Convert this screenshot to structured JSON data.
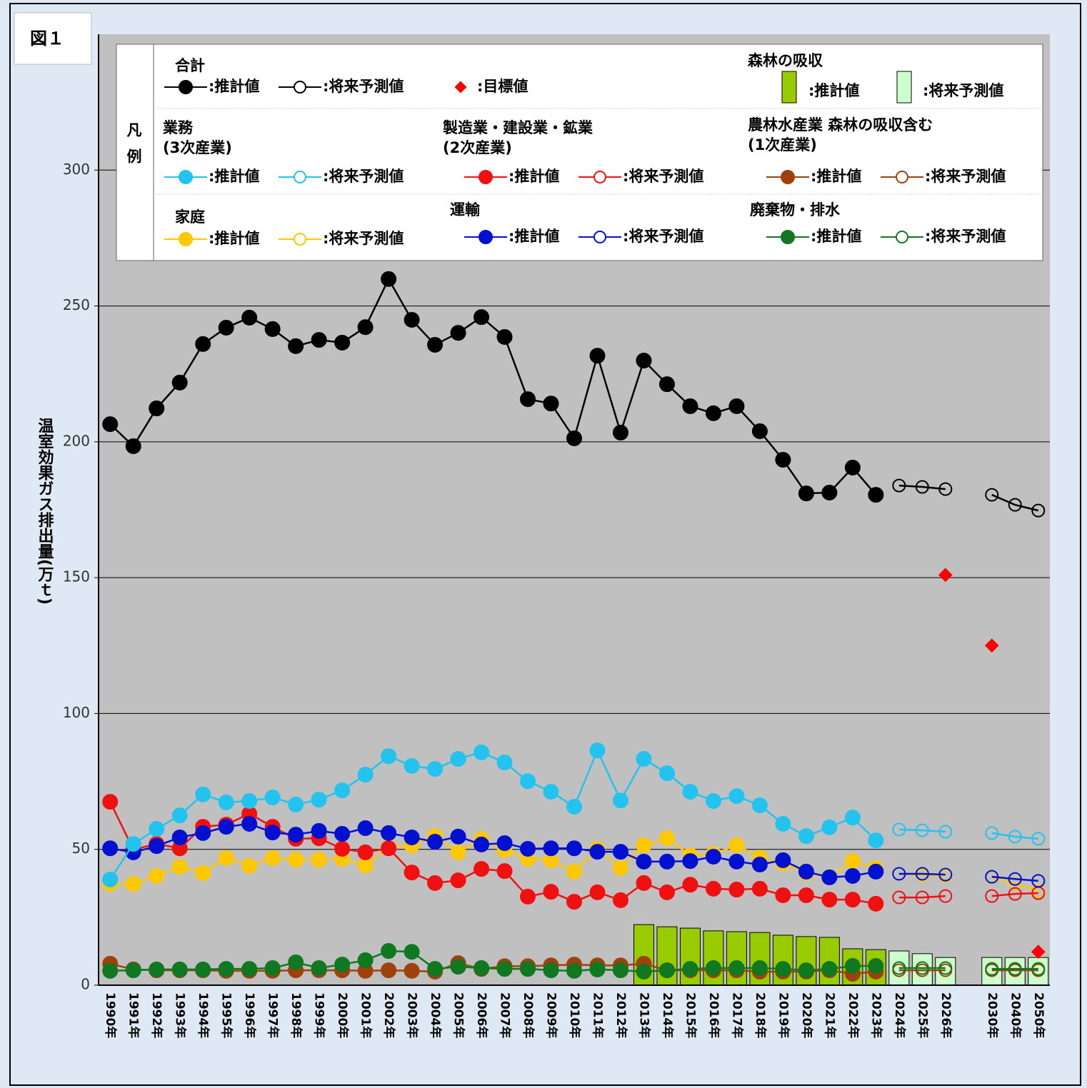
{
  "figure_label": "図１",
  "chart_data": {
    "type": "line",
    "y_label": "温室効果ガス排出量(万ｔ)",
    "legend_title": "凡例",
    "estimate_label": ":推計値",
    "forecast_label": ":将来予測値",
    "categories": [
      "1990年",
      "1991年",
      "1992年",
      "1993年",
      "1994年",
      "1995年",
      "1996年",
      "1997年",
      "1998年",
      "1999年",
      "2000年",
      "2001年",
      "2002年",
      "2003年",
      "2004年",
      "2005年",
      "2006年",
      "2007年",
      "2008年",
      "2009年",
      "2010年",
      "2011年",
      "2012年",
      "2013年",
      "2014年",
      "2015年",
      "2016年",
      "2017年",
      "2018年",
      "2019年",
      "2020年",
      "2021年",
      "2022年",
      "2023年",
      "2024年",
      "2025年",
      "2026年",
      null,
      "2030年",
      "2040年",
      "2050年"
    ],
    "ylim": [
      0,
      350
    ],
    "yticks": [
      0,
      50,
      100,
      150,
      200,
      250,
      300
    ],
    "grid": true,
    "series": [
      {
        "name": "合計",
        "color": "#000000",
        "values": [
          206.5,
          198.4,
          212.3,
          221.8,
          236,
          242,
          245.7,
          241.5,
          235.2,
          237.5,
          236.5,
          242.2,
          259.9,
          244.9,
          235.7,
          240.1,
          245.9,
          238.6,
          215.7,
          214.1,
          201.3,
          231.7,
          203.4,
          229.9,
          221.2,
          213.1,
          210.5,
          213.1,
          203.9,
          193.4,
          181,
          181.3,
          190.5,
          180.5,
          null,
          null,
          null,
          null,
          null,
          null,
          null
        ],
        "forecast": [
          null,
          null,
          null,
          null,
          null,
          null,
          null,
          null,
          null,
          null,
          null,
          null,
          null,
          null,
          null,
          null,
          null,
          null,
          null,
          null,
          null,
          null,
          null,
          null,
          null,
          null,
          null,
          null,
          null,
          null,
          null,
          null,
          null,
          null,
          183.9,
          183.4,
          182.6,
          null,
          180.5,
          176.8,
          174.7
        ]
      },
      {
        "name": "業務",
        "note": "(3次産業)",
        "color": "#22c3ef",
        "values": [
          38.9,
          52,
          57.5,
          62.5,
          70.2,
          67.3,
          67.8,
          69.1,
          66.5,
          68.3,
          71.7,
          77.5,
          84.3,
          80.7,
          79.6,
          83.3,
          85.7,
          82,
          75.1,
          71.2,
          65.7,
          86.4,
          68,
          83.3,
          78,
          71.2,
          67.8,
          69.6,
          66.2,
          59.4,
          54.9,
          58.1,
          61.7,
          53.3,
          null,
          null,
          null,
          null,
          null,
          null,
          null
        ],
        "forecast": [
          null,
          null,
          null,
          null,
          null,
          null,
          null,
          null,
          null,
          null,
          null,
          null,
          null,
          null,
          null,
          null,
          null,
          null,
          null,
          null,
          null,
          null,
          null,
          null,
          null,
          null,
          null,
          null,
          null,
          null,
          null,
          null,
          null,
          null,
          57.3,
          57,
          56.5,
          null,
          56,
          54.7,
          53.9
        ]
      },
      {
        "name": "製造業・建設業・鉱業",
        "note": "(2次産業)",
        "color": "#f01010",
        "values": [
          67.5,
          49.9,
          52,
          50.4,
          58.3,
          59.1,
          63.1,
          58.3,
          53.9,
          54.1,
          50.2,
          48.9,
          50.4,
          41.5,
          37.6,
          38.6,
          42.8,
          42,
          32.6,
          34.4,
          30.7,
          34.2,
          31.3,
          37.6,
          34.2,
          37,
          35.5,
          35.2,
          35.5,
          33.1,
          33.1,
          31.5,
          31.5,
          30,
          null,
          null,
          null,
          null,
          null,
          null,
          null
        ],
        "forecast": [
          null,
          null,
          null,
          null,
          null,
          null,
          null,
          null,
          null,
          null,
          null,
          null,
          null,
          null,
          null,
          null,
          null,
          null,
          null,
          null,
          null,
          null,
          null,
          null,
          null,
          null,
          null,
          null,
          null,
          null,
          null,
          null,
          null,
          null,
          32.3,
          32.3,
          32.8,
          null,
          32.8,
          33.6,
          33.9
        ]
      },
      {
        "name": "農林水産業 森林の吸収含む",
        "note": "(1次産業)",
        "color": "#a0400a",
        "values": [
          7.9,
          5.8,
          5.5,
          5.5,
          5.5,
          5.3,
          5.3,
          5.3,
          5.5,
          5.5,
          5.5,
          5.3,
          5.5,
          5.3,
          5,
          8.1,
          6,
          7,
          7,
          7.3,
          7.6,
          7.3,
          7.3,
          7.9,
          5.5,
          5.5,
          5.5,
          5.5,
          5,
          5,
          5,
          5.5,
          4.2,
          5,
          null,
          null,
          null,
          null,
          null,
          null,
          null
        ],
        "forecast": [
          null,
          null,
          null,
          null,
          null,
          null,
          null,
          null,
          null,
          null,
          null,
          null,
          null,
          null,
          null,
          null,
          null,
          null,
          null,
          null,
          null,
          null,
          null,
          null,
          null,
          null,
          null,
          null,
          null,
          null,
          null,
          null,
          null,
          null,
          5.5,
          5.5,
          5.5,
          null,
          5.5,
          5.5,
          5.5
        ]
      },
      {
        "name": "家庭",
        "color": "#ffc800",
        "values": [
          37.3,
          37.3,
          40.2,
          43.6,
          41.3,
          46.8,
          43.9,
          46.8,
          46.2,
          46.2,
          46.5,
          44.1,
          50.7,
          51.5,
          54.9,
          48.9,
          53.9,
          49.7,
          46.5,
          46,
          41.8,
          50.2,
          43.1,
          51.5,
          54.1,
          47.8,
          48.3,
          51.5,
          47,
          44.9,
          41.3,
          39.7,
          45.7,
          43.1,
          null,
          null,
          null,
          null,
          null,
          null,
          null
        ],
        "forecast": [
          null,
          null,
          null,
          null,
          null,
          null,
          null,
          null,
          null,
          null,
          null,
          null,
          null,
          null,
          null,
          null,
          null,
          null,
          null,
          null,
          null,
          null,
          null,
          null,
          null,
          null,
          null,
          null,
          null,
          null,
          null,
          null,
          null,
          null,
          41,
          40.5,
          40.2,
          null,
          39.7,
          37.3,
          34.7
        ]
      },
      {
        "name": "運輸",
        "color": "#0010d0",
        "values": [
          50.4,
          48.9,
          51.2,
          54.4,
          56,
          58.3,
          59.4,
          56.2,
          55.4,
          56.8,
          55.7,
          57.8,
          56,
          54.4,
          52.8,
          54.7,
          51.8,
          52.3,
          50.2,
          50.4,
          50.4,
          49.1,
          49.1,
          45.5,
          45.5,
          45.7,
          47.3,
          45.5,
          44.4,
          46,
          41.8,
          39.7,
          40.2,
          41.8,
          null,
          null,
          null,
          null,
          null,
          null,
          null
        ],
        "forecast": [
          null,
          null,
          null,
          null,
          null,
          null,
          null,
          null,
          null,
          null,
          null,
          null,
          null,
          null,
          null,
          null,
          null,
          null,
          null,
          null,
          null,
          null,
          null,
          null,
          null,
          null,
          null,
          null,
          null,
          null,
          null,
          null,
          null,
          null,
          41,
          41,
          40.7,
          null,
          39.9,
          39.1,
          38.4
        ]
      },
      {
        "name": "廃棄物・排水",
        "color": "#107820",
        "values": [
          5.3,
          5.5,
          5.8,
          5.8,
          5.8,
          6,
          6,
          6.3,
          8.4,
          6.3,
          7.6,
          9.2,
          12.6,
          12.3,
          6,
          6.8,
          6.3,
          6,
          6,
          5.5,
          5.3,
          5.8,
          5.5,
          5,
          5.5,
          6,
          6.3,
          6.3,
          6.3,
          6,
          5.5,
          6,
          7.1,
          7.1,
          null,
          null,
          null,
          null,
          null,
          null,
          null
        ],
        "forecast": [
          null,
          null,
          null,
          null,
          null,
          null,
          null,
          null,
          null,
          null,
          null,
          null,
          null,
          null,
          null,
          null,
          null,
          null,
          null,
          null,
          null,
          null,
          null,
          null,
          null,
          null,
          null,
          null,
          null,
          null,
          null,
          null,
          null,
          null,
          6.3,
          6.3,
          6.3,
          null,
          6,
          6,
          6
        ]
      }
    ],
    "forest": {
      "name": "森林の吸収",
      "color": "#99cc00",
      "forecast_color": "#ccffcc",
      "values": [
        null,
        null,
        null,
        null,
        null,
        null,
        null,
        null,
        null,
        null,
        null,
        null,
        null,
        null,
        null,
        null,
        null,
        null,
        null,
        null,
        null,
        null,
        null,
        22.3,
        21.5,
        21,
        20,
        19.7,
        19.4,
        18.4,
        17.9,
        17.6,
        13.4,
        13.1,
        null,
        null,
        null,
        null,
        null,
        null,
        null
      ],
      "forecast": [
        null,
        null,
        null,
        null,
        null,
        null,
        null,
        null,
        null,
        null,
        null,
        null,
        null,
        null,
        null,
        null,
        null,
        null,
        null,
        null,
        null,
        null,
        null,
        null,
        null,
        null,
        null,
        null,
        null,
        null,
        null,
        null,
        null,
        null,
        12.6,
        11.6,
        10.2,
        null,
        10.2,
        10.2,
        10.2
      ]
    },
    "targets": {
      "name": ":目標値",
      "color": "#ff0000",
      "values": [
        null,
        null,
        null,
        null,
        null,
        null,
        null,
        null,
        null,
        null,
        null,
        null,
        null,
        null,
        null,
        null,
        null,
        null,
        null,
        null,
        null,
        null,
        null,
        null,
        null,
        null,
        null,
        null,
        null,
        null,
        null,
        null,
        null,
        null,
        null,
        null,
        151,
        null,
        125,
        null,
        12.3
      ]
    }
  }
}
